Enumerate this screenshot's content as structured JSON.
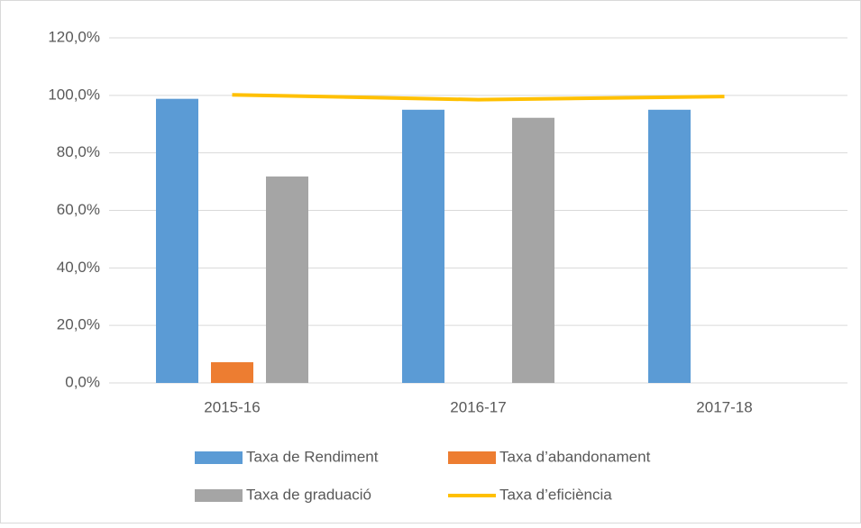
{
  "chart_data": {
    "type": "bar",
    "categories": [
      "2015-16",
      "2016-17",
      "2017-18"
    ],
    "series": [
      {
        "name": "Taxa de Rendiment",
        "color": "#5b9bd5",
        "values": [
          98.8,
          95.0,
          95.0
        ]
      },
      {
        "name": "Taxa d’abandonament",
        "color": "#ed7d31",
        "values": [
          7.2,
          null,
          null
        ]
      },
      {
        "name": "Taxa de graduació",
        "color": "#a5a5a5",
        "values": [
          71.8,
          92.2,
          null
        ]
      },
      {
        "name": "Taxa d’eficiència",
        "color": "#ffc000",
        "type": "line",
        "values": [
          100.2,
          98.5,
          99.6
        ]
      }
    ],
    "ylim": [
      0,
      120
    ],
    "yticks": [
      {
        "value": 0,
        "label": "0,0%"
      },
      {
        "value": 20,
        "label": "20,0%"
      },
      {
        "value": 40,
        "label": "40,0%"
      },
      {
        "value": 60,
        "label": "60,0%"
      },
      {
        "value": 80,
        "label": "80,0%"
      },
      {
        "value": 100,
        "label": "100,0%"
      },
      {
        "value": 120,
        "label": "120,0%"
      }
    ],
    "grid": true
  }
}
